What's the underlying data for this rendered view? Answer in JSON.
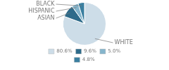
{
  "chart_data": {
    "type": "pie",
    "categories": [
      "WHITE",
      "ASIAN",
      "HISPANIC",
      "BLACK"
    ],
    "values": [
      80.6,
      9.6,
      5.0,
      4.8
    ],
    "value_labels": [
      "80.6%",
      "9.6%",
      "5.0%",
      "4.8%"
    ],
    "colors": [
      "#cddde8",
      "#2e6b8a",
      "#85b5cc",
      "#3a7fa0"
    ],
    "legend": "bottom"
  }
}
